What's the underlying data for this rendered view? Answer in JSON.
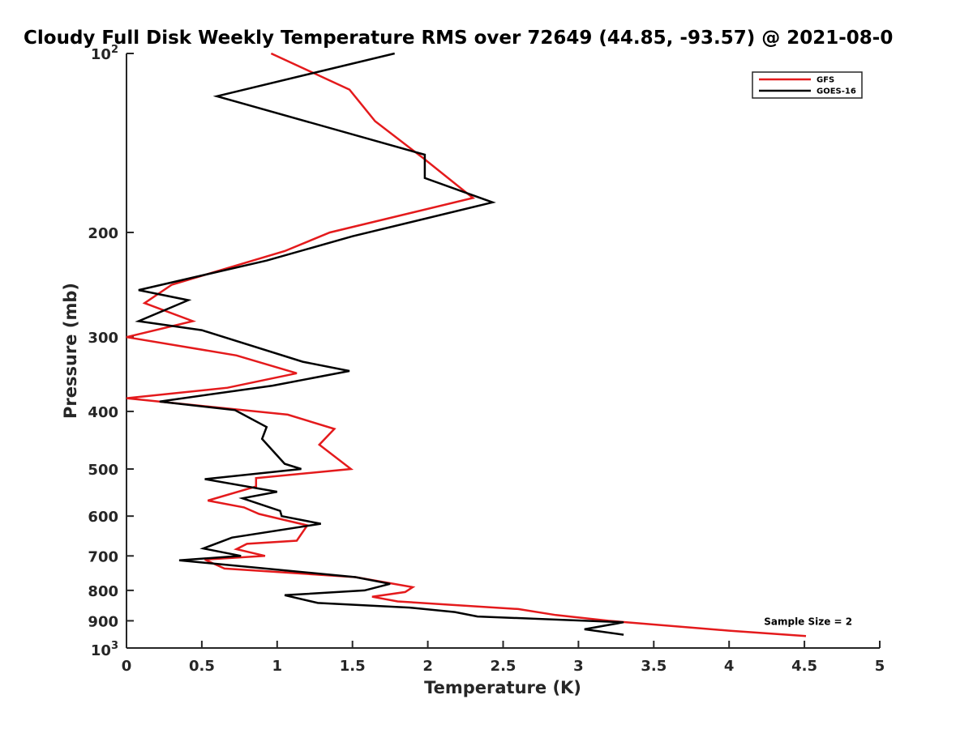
{
  "chart_data": {
    "type": "line",
    "title": "Cloudy Full Disk Weekly Temperature RMS over 72649 (44.85, -93.57) @ 2021-08-0",
    "xlabel": "Temperature (K)",
    "ylabel": "Pressure (mb)",
    "xlim": [
      0,
      5
    ],
    "ylim": [
      100,
      1000
    ],
    "y_scale": "log",
    "y_reversed": true,
    "grid": false,
    "legend_position": "top-right",
    "x_ticks": [
      0,
      0.5,
      1,
      1.5,
      2,
      2.5,
      3,
      3.5,
      4,
      4.5,
      5
    ],
    "x_tick_labels": [
      "0",
      "0.5",
      "1",
      "1.5",
      "2",
      "2.5",
      "3",
      "3.5",
      "4",
      "4.5",
      "5"
    ],
    "y_ticks": [
      {
        "value": 100,
        "base": "10",
        "exp": "2"
      },
      {
        "value": 200,
        "label": "200"
      },
      {
        "value": 300,
        "label": "300"
      },
      {
        "value": 400,
        "label": "400"
      },
      {
        "value": 500,
        "label": "500"
      },
      {
        "value": 600,
        "label": "600"
      },
      {
        "value": 700,
        "label": "700"
      },
      {
        "value": 800,
        "label": "800"
      },
      {
        "value": 900,
        "label": "900"
      },
      {
        "value": 1000,
        "base": "10",
        "exp": "3"
      }
    ],
    "series": [
      {
        "name": "GFS",
        "color": "#e41a1c",
        "points": [
          [
            0.96,
            100
          ],
          [
            1.48,
            115
          ],
          [
            1.65,
            130
          ],
          [
            1.97,
            150
          ],
          [
            2.3,
            175
          ],
          [
            1.35,
            200
          ],
          [
            1.05,
            215
          ],
          [
            0.3,
            245
          ],
          [
            0.12,
            263
          ],
          [
            0.44,
            282
          ],
          [
            0.0,
            300
          ],
          [
            0.73,
            322
          ],
          [
            1.13,
            345
          ],
          [
            0.67,
            365
          ],
          [
            0.0,
            380
          ],
          [
            1.07,
            405
          ],
          [
            1.38,
            428
          ],
          [
            1.28,
            455
          ],
          [
            1.49,
            500
          ],
          [
            0.86,
            518
          ],
          [
            0.86,
            535
          ],
          [
            0.54,
            565
          ],
          [
            0.78,
            580
          ],
          [
            0.88,
            595
          ],
          [
            1.2,
            622
          ],
          [
            1.13,
            660
          ],
          [
            0.8,
            668
          ],
          [
            0.73,
            682
          ],
          [
            0.92,
            700
          ],
          [
            0.52,
            710
          ],
          [
            0.65,
            735
          ],
          [
            1.52,
            760
          ],
          [
            1.9,
            790
          ],
          [
            1.85,
            805
          ],
          [
            1.63,
            820
          ],
          [
            1.8,
            835
          ],
          [
            2.6,
            860
          ],
          [
            2.85,
            880
          ],
          [
            3.2,
            900
          ],
          [
            4.0,
            935
          ],
          [
            4.51,
            955
          ]
        ]
      },
      {
        "name": "GOES-16",
        "color": "#000000",
        "points": [
          [
            1.78,
            100
          ],
          [
            0.6,
            118
          ],
          [
            1.98,
            148
          ],
          [
            1.98,
            162
          ],
          [
            2.43,
            178
          ],
          [
            1.5,
            203
          ],
          [
            0.93,
            223
          ],
          [
            0.08,
            250
          ],
          [
            0.41,
            260
          ],
          [
            0.08,
            282
          ],
          [
            0.5,
            292
          ],
          [
            1.17,
            330
          ],
          [
            1.48,
            342
          ],
          [
            0.97,
            362
          ],
          [
            0.22,
            385
          ],
          [
            0.72,
            398
          ],
          [
            0.93,
            425
          ],
          [
            0.9,
            445
          ],
          [
            1.05,
            490
          ],
          [
            1.16,
            500
          ],
          [
            0.52,
            520
          ],
          [
            1.0,
            546
          ],
          [
            0.77,
            560
          ],
          [
            1.02,
            588
          ],
          [
            1.03,
            600
          ],
          [
            1.29,
            618
          ],
          [
            0.7,
            652
          ],
          [
            0.51,
            680
          ],
          [
            0.76,
            700
          ],
          [
            0.35,
            712
          ],
          [
            1.52,
            760
          ],
          [
            1.75,
            780
          ],
          [
            1.58,
            800
          ],
          [
            1.05,
            815
          ],
          [
            1.27,
            840
          ],
          [
            1.88,
            855
          ],
          [
            2.18,
            870
          ],
          [
            2.33,
            885
          ],
          [
            3.3,
            905
          ],
          [
            3.04,
            930
          ],
          [
            3.3,
            950
          ]
        ]
      }
    ],
    "annotations": [
      {
        "text": "Sample Size = 2",
        "x": 4.42,
        "y": 900
      }
    ]
  }
}
